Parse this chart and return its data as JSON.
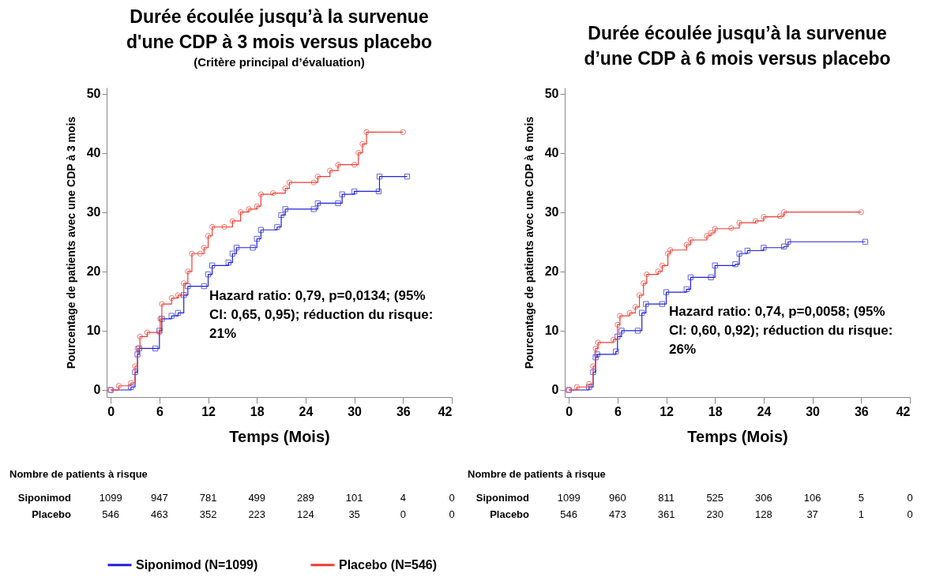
{
  "chart_data": [
    {
      "type": "step",
      "title": "Durée écoulée jusqu’à la survenue d'une CDP à 3 mois versus placebo",
      "subtitle": "(Critère principal d’évaluation)",
      "xlabel": "Temps (Mois)",
      "ylabel": "Pourcentage de patients avec une CDP à 3 mois",
      "xlim": [
        -0.5,
        42
      ],
      "ylim": [
        -1.2,
        51
      ],
      "xticks": [
        0,
        6,
        12,
        18,
        24,
        30,
        36,
        42
      ],
      "yticks": [
        0,
        10,
        20,
        30,
        40,
        50
      ],
      "legend": "bottom",
      "series": [
        {
          "name": "Siponimod (N=1099)",
          "color": "#1f1fdb",
          "marker": "square",
          "x": [
            0,
            2.5,
            3,
            3.3,
            3.5,
            5.5,
            6,
            6.3,
            7.5,
            8.3,
            9,
            9.5,
            11.5,
            12,
            12.5,
            14.5,
            15,
            15.5,
            17.5,
            18,
            18.5,
            20.5,
            21,
            21.5,
            25,
            25.5,
            28,
            28.5,
            30,
            33,
            33.1,
            36.5
          ],
          "values": [
            0,
            0.5,
            3,
            6,
            7,
            7,
            10,
            12,
            12.5,
            13,
            16,
            17.5,
            17.5,
            19.5,
            21,
            21.5,
            23,
            24,
            24,
            25.5,
            27,
            27.5,
            29.5,
            30.5,
            30.5,
            31.5,
            31.5,
            33,
            33.5,
            33.5,
            36,
            36
          ]
        },
        {
          "name": "Placebo (N=546)",
          "color": "#f03c32",
          "marker": "circle",
          "x": [
            0,
            1,
            2.5,
            3,
            3.3,
            3.6,
            4.5,
            6,
            6.1,
            6.3,
            7.5,
            8.3,
            9,
            9.5,
            10,
            11,
            11.5,
            12,
            12.5,
            14,
            15,
            16,
            17,
            18,
            18.5,
            20,
            21.5,
            22,
            25,
            25.5,
            27,
            28,
            30,
            30.5,
            31,
            31.5,
            36
          ],
          "values": [
            0,
            0.7,
            1.2,
            4,
            7,
            9,
            9.7,
            9.7,
            12,
            14.5,
            15.5,
            16,
            18,
            20,
            23,
            23,
            24,
            26,
            27.5,
            27.5,
            28.5,
            30,
            30.5,
            31,
            33,
            33.2,
            34,
            35,
            35,
            36,
            37,
            38,
            38,
            40,
            41.5,
            43.5,
            43.5
          ]
        }
      ],
      "annotations": [
        "Hazard ratio: 0,79, p=0,0134; (95% Cl: 0,65, 0,95); réduction du risque: 21%",
        "Nombre de patients à risque",
        "Siponimod",
        "1099",
        "947",
        "781",
        "499",
        "289",
        "101",
        "4",
        "0",
        "Placebo",
        "546",
        "463",
        "352",
        "223",
        "124",
        "35",
        "0",
        "0"
      ]
    },
    {
      "type": "step",
      "title": "Durée écoulée jusqu’à la survenue d’une CDP à 6 mois versus placebo",
      "xlabel": "Temps (Mois)",
      "ylabel": "Pourcentage de patients avec une CDP à 6 mois",
      "xlim": [
        -0.5,
        42
      ],
      "ylim": [
        -1.2,
        51
      ],
      "xticks": [
        0,
        6,
        12,
        18,
        24,
        30,
        36,
        42
      ],
      "yticks": [
        0,
        10,
        20,
        30,
        40,
        50
      ],
      "legend": "bottom",
      "series": [
        {
          "name": "Siponimod (N=1099)",
          "color": "#1f1fdb",
          "marker": "square",
          "x": [
            0,
            2.5,
            3,
            3.3,
            3.5,
            5.8,
            6,
            6.5,
            8.5,
            9,
            9.5,
            11.5,
            12,
            14.5,
            15,
            17.5,
            18,
            20.5,
            21,
            22,
            24,
            26.5,
            27,
            36.5
          ],
          "values": [
            0,
            0.5,
            3,
            5.5,
            6,
            6.5,
            9,
            10,
            10,
            13,
            14.5,
            14.5,
            16.5,
            17,
            19,
            19,
            21,
            21.2,
            23,
            23.5,
            24,
            24.2,
            25,
            25
          ]
        },
        {
          "name": "Placebo (N=546)",
          "color": "#f03c32",
          "marker": "circle",
          "x": [
            0,
            1,
            2.5,
            3,
            3.3,
            3.6,
            5.5,
            6,
            6.3,
            7.5,
            8.2,
            8.7,
            9.2,
            9.6,
            11,
            11.5,
            12.2,
            12.5,
            14.5,
            15,
            17,
            17.5,
            18,
            20,
            21,
            23,
            24,
            26,
            26.5,
            36
          ],
          "values": [
            0,
            0.5,
            1,
            4,
            7,
            8,
            8.5,
            11,
            12.5,
            13,
            14,
            16,
            18,
            19.5,
            20,
            21,
            23,
            23.6,
            24.5,
            25.3,
            26,
            26.5,
            27.2,
            27.3,
            28.2,
            28.5,
            29.2,
            29.3,
            30,
            30
          ]
        }
      ],
      "annotations": [
        "Hazard ratio: 0,74, p=0,0058; (95% Cl: 0,60, 0,92); réduction du risque: 26%",
        "Nombre de patients à risque",
        "Siponimod",
        "1099",
        "960",
        "811",
        "525",
        "306",
        "106",
        "5",
        "0",
        "Placebo",
        "546",
        "473",
        "361",
        "230",
        "128",
        "37",
        "1",
        "0"
      ]
    }
  ]
}
